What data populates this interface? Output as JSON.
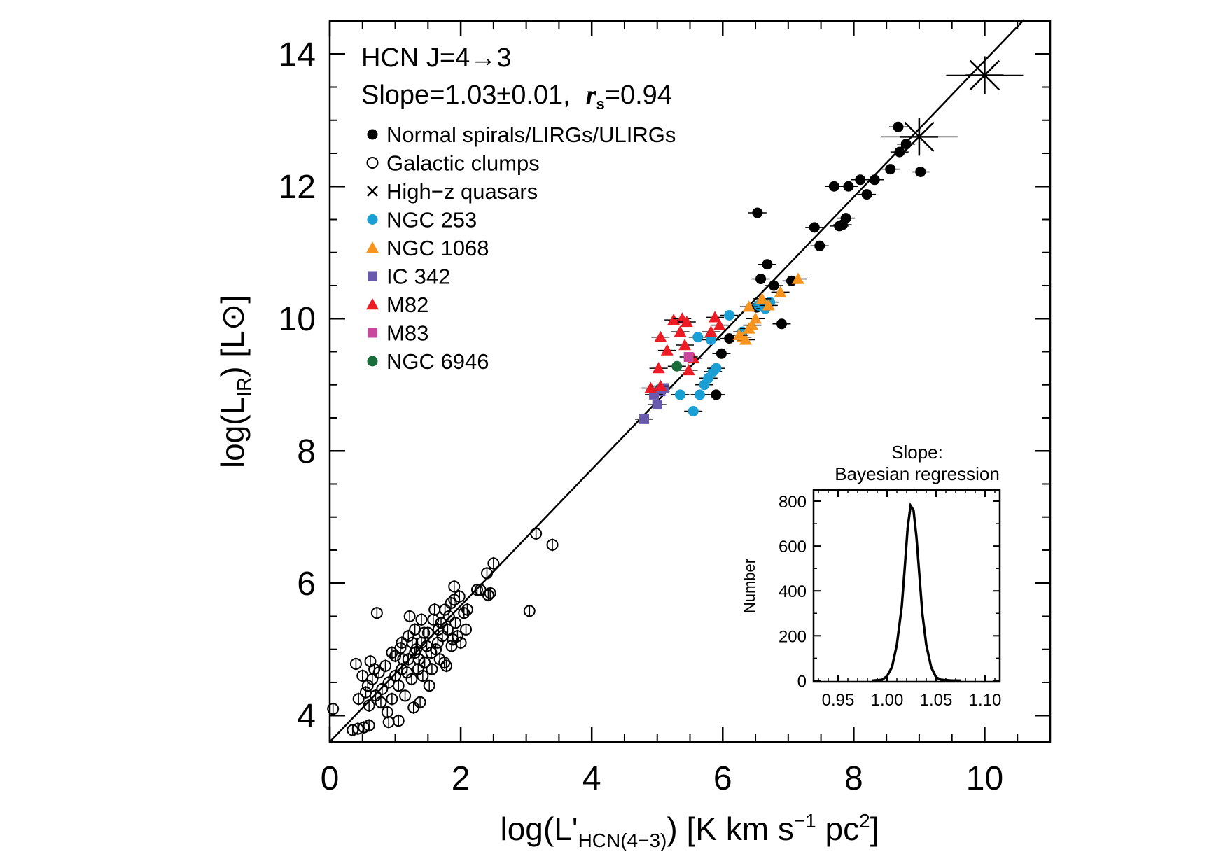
{
  "chart_data": [
    {
      "type": "scatter",
      "title": "HCN J=4→3",
      "fit_text": {
        "slope_label": "Slope=1.03±0.01,",
        "rs_symbol": "r",
        "rs_sub": "s",
        "rs_value": "=0.94"
      },
      "xlabel": {
        "pre": "log(L'",
        "sub": "HCN(4−3)",
        "post": ") [K km s",
        "sup1": "−1",
        "mid": " pc",
        "sup2": "2",
        "end": "]"
      },
      "ylabel": {
        "pre": "log(L",
        "sub": "IR",
        "post": ") [L",
        "sun": "⊙",
        "end": "]"
      },
      "xlim": [
        0,
        11
      ],
      "ylim": [
        3.6,
        14.5
      ],
      "xticks": [
        0,
        2,
        4,
        6,
        8,
        10
      ],
      "yticks": [
        4,
        6,
        8,
        10,
        12,
        14
      ],
      "xtick_labels": [
        "0",
        "2",
        "4",
        "6",
        "8",
        "10"
      ],
      "ytick_labels": [
        "4",
        "6",
        "8",
        "10",
        "12",
        "14"
      ],
      "grid": false,
      "legend_position": "top-left",
      "fit_line": {
        "slope": 1.03,
        "intercept": 3.6,
        "x_range": [
          0,
          10.6
        ]
      },
      "series": [
        {
          "name": "Normal spirals/LIRGs/ULIRGs",
          "marker": "filled-circle",
          "color": "#000000",
          "points": [
            [
              5.9,
              8.85
            ],
            [
              5.98,
              9.47
            ],
            [
              6.1,
              9.7
            ],
            [
              6.52,
              10.17
            ],
            [
              6.58,
              10.6
            ],
            [
              6.68,
              10.82
            ],
            [
              6.9,
              9.92
            ],
            [
              6.78,
              10.5
            ],
            [
              7.05,
              10.57
            ],
            [
              6.53,
              11.6
            ],
            [
              7.4,
              11.38
            ],
            [
              7.48,
              11.1
            ],
            [
              7.7,
              12.0
            ],
            [
              7.78,
              11.4
            ],
            [
              7.83,
              11.42
            ],
            [
              7.88,
              11.52
            ],
            [
              7.92,
              12.0
            ],
            [
              8.1,
              12.1
            ],
            [
              8.2,
              11.88
            ],
            [
              8.32,
              12.1
            ],
            [
              8.56,
              12.26
            ],
            [
              8.7,
              12.52
            ],
            [
              8.8,
              12.64
            ],
            [
              9.02,
              12.22
            ],
            [
              8.68,
              12.9
            ]
          ]
        },
        {
          "name": "Galactic clumps",
          "marker": "open-circle",
          "color": "#000000",
          "points": [
            [
              0.05,
              4.1
            ],
            [
              0.35,
              3.78
            ],
            [
              0.43,
              3.8
            ],
            [
              0.52,
              3.82
            ],
            [
              0.6,
              3.85
            ],
            [
              0.44,
              4.25
            ],
            [
              0.5,
              4.6
            ],
            [
              0.55,
              4.35
            ],
            [
              0.6,
              4.15
            ],
            [
              0.65,
              4.55
            ],
            [
              0.7,
              4.3
            ],
            [
              0.75,
              4.65
            ],
            [
              0.8,
              4.4
            ],
            [
              0.85,
              4.75
            ],
            [
              0.9,
              4.5
            ],
            [
              0.95,
              4.25
            ],
            [
              1.0,
              4.6
            ],
            [
              1.0,
              4.9
            ],
            [
              1.05,
              4.45
            ],
            [
              1.1,
              4.7
            ],
            [
              1.1,
              5.1
            ],
            [
              1.15,
              4.3
            ],
            [
              1.2,
              4.85
            ],
            [
              1.2,
              5.2
            ],
            [
              1.25,
              4.55
            ],
            [
              1.3,
              4.95
            ],
            [
              1.3,
              5.3
            ],
            [
              1.35,
              4.7
            ],
            [
              1.4,
              5.1
            ],
            [
              1.4,
              5.45
            ],
            [
              1.45,
              4.8
            ],
            [
              1.5,
              5.25
            ],
            [
              1.55,
              4.95
            ],
            [
              1.6,
              5.6
            ],
            [
              1.65,
              5.1
            ],
            [
              1.7,
              5.4
            ],
            [
              1.75,
              4.8
            ],
            [
              1.8,
              5.3
            ],
            [
              1.85,
              5.7
            ],
            [
              1.9,
              5.95
            ],
            [
              1.95,
              5.2
            ],
            [
              2.05,
              5.55
            ],
            [
              2.1,
              5.6
            ],
            [
              0.72,
              5.55
            ],
            [
              0.62,
              4.82
            ],
            [
              0.68,
              4.7
            ],
            [
              0.78,
              4.2
            ],
            [
              0.95,
              4.95
            ],
            [
              1.08,
              5.02
            ],
            [
              1.18,
              4.65
            ],
            [
              1.28,
              4.12
            ],
            [
              1.38,
              4.2
            ],
            [
              1.48,
              5.05
            ],
            [
              1.58,
              5.45
            ],
            [
              1.68,
              4.85
            ],
            [
              1.78,
              4.75
            ],
            [
              1.88,
              5.15
            ],
            [
              1.98,
              5.8
            ],
            [
              2.08,
              5.3
            ],
            [
              2.3,
              5.9
            ],
            [
              2.4,
              6.15
            ],
            [
              2.45,
              5.85
            ],
            [
              2.5,
              6.3
            ],
            [
              3.05,
              5.58
            ],
            [
              3.15,
              6.75
            ],
            [
              3.4,
              6.58
            ],
            [
              0.9,
              3.9
            ],
            [
              1.05,
              3.92
            ],
            [
              0.4,
              4.78
            ],
            [
              1.22,
              5.5
            ],
            [
              1.32,
              5.0
            ],
            [
              1.42,
              4.6
            ],
            [
              1.52,
              4.45
            ],
            [
              1.62,
              5.0
            ],
            [
              1.72,
              5.2
            ],
            [
              1.82,
              5.5
            ],
            [
              1.92,
              5.4
            ],
            [
              1.9,
              5.75
            ],
            [
              2.0,
              5.1
            ],
            [
              2.25,
              5.9
            ],
            [
              2.42,
              5.82
            ],
            [
              0.58,
              4.45
            ],
            [
              0.88,
              4.05
            ],
            [
              1.12,
              4.85
            ],
            [
              1.26,
              5.1
            ],
            [
              1.36,
              4.85
            ],
            [
              1.44,
              5.25
            ],
            [
              1.56,
              4.7
            ],
            [
              1.66,
              5.3
            ],
            [
              1.76,
              5.6
            ],
            [
              1.86,
              5.05
            ]
          ]
        },
        {
          "name": "High−z quasars",
          "marker": "cross",
          "color": "#000000",
          "points": [
            [
              9.0,
              12.75
            ],
            [
              10.0,
              13.68
            ]
          ]
        },
        {
          "name": "NGC 253",
          "marker": "filled-circle",
          "color": "#1a9fd4",
          "points": [
            [
              5.05,
              8.95
            ],
            [
              5.35,
              8.85
            ],
            [
              5.55,
              8.6
            ],
            [
              5.65,
              8.85
            ],
            [
              5.72,
              9.0
            ],
            [
              5.78,
              9.1
            ],
            [
              5.85,
              9.2
            ],
            [
              5.9,
              9.25
            ],
            [
              5.62,
              9.72
            ],
            [
              5.82,
              9.68
            ],
            [
              6.1,
              10.05
            ],
            [
              6.3,
              9.8
            ],
            [
              6.55,
              10.2
            ],
            [
              6.65,
              10.15
            ],
            [
              6.72,
              10.25
            ]
          ]
        },
        {
          "name": "NGC 1068",
          "marker": "triangle",
          "color": "#f7941d",
          "points": [
            [
              6.3,
              9.72
            ],
            [
              6.35,
              9.68
            ],
            [
              6.4,
              9.85
            ],
            [
              6.45,
              9.9
            ],
            [
              6.5,
              10.0
            ],
            [
              6.4,
              10.18
            ],
            [
              6.6,
              10.3
            ],
            [
              6.7,
              10.2
            ],
            [
              6.88,
              10.4
            ],
            [
              7.15,
              10.6
            ],
            [
              6.25,
              9.75
            ]
          ]
        },
        {
          "name": "IC 342",
          "marker": "square",
          "color": "#6a5aad",
          "points": [
            [
              4.8,
              8.48
            ],
            [
              5.0,
              8.7
            ],
            [
              5.05,
              8.9
            ],
            [
              5.1,
              8.95
            ],
            [
              4.95,
              8.85
            ]
          ]
        },
        {
          "name": "M82",
          "marker": "triangle",
          "color": "#ed1c24",
          "points": [
            [
              4.9,
              8.95
            ],
            [
              5.05,
              8.98
            ],
            [
              5.02,
              9.25
            ],
            [
              5.05,
              9.72
            ],
            [
              5.15,
              9.52
            ],
            [
              5.25,
              9.98
            ],
            [
              5.38,
              10.0
            ],
            [
              5.45,
              9.95
            ],
            [
              5.35,
              9.8
            ],
            [
              5.42,
              9.6
            ],
            [
              5.48,
              9.22
            ],
            [
              5.55,
              9.4
            ],
            [
              5.82,
              9.8
            ],
            [
              5.88,
              10.02
            ],
            [
              5.95,
              9.9
            ]
          ]
        },
        {
          "name": "M83",
          "marker": "square",
          "color": "#c7489d",
          "points": [
            [
              5.48,
              9.42
            ]
          ]
        },
        {
          "name": "NGC 6946",
          "marker": "filled-circle",
          "color": "#1a6e3c",
          "points": [
            [
              5.3,
              9.28
            ]
          ]
        }
      ]
    },
    {
      "type": "line",
      "title": "Slope:",
      "subtitle": "Bayesian regression",
      "ylabel": "Number",
      "xlim": [
        0.925,
        1.115
      ],
      "ylim": [
        -5,
        850
      ],
      "xticks": [
        0.95,
        1.0,
        1.05,
        1.1
      ],
      "yticks": [
        0,
        200,
        400,
        600,
        800
      ],
      "xtick_labels": [
        "0.95",
        "1.00",
        "1.05",
        "1.10"
      ],
      "ytick_labels": [
        "0",
        "200",
        "400",
        "600",
        "800"
      ],
      "series": [
        {
          "x": [
            0.985,
            0.995,
            1.0,
            1.005,
            1.01,
            1.015,
            1.018,
            1.021,
            1.024,
            1.027,
            1.03,
            1.033,
            1.036,
            1.04,
            1.045,
            1.05,
            1.055,
            1.065,
            1.075
          ],
          "values": [
            0,
            4,
            20,
            60,
            160,
            330,
            500,
            680,
            780,
            760,
            640,
            470,
            300,
            160,
            60,
            15,
            4,
            1,
            0
          ]
        }
      ]
    }
  ]
}
